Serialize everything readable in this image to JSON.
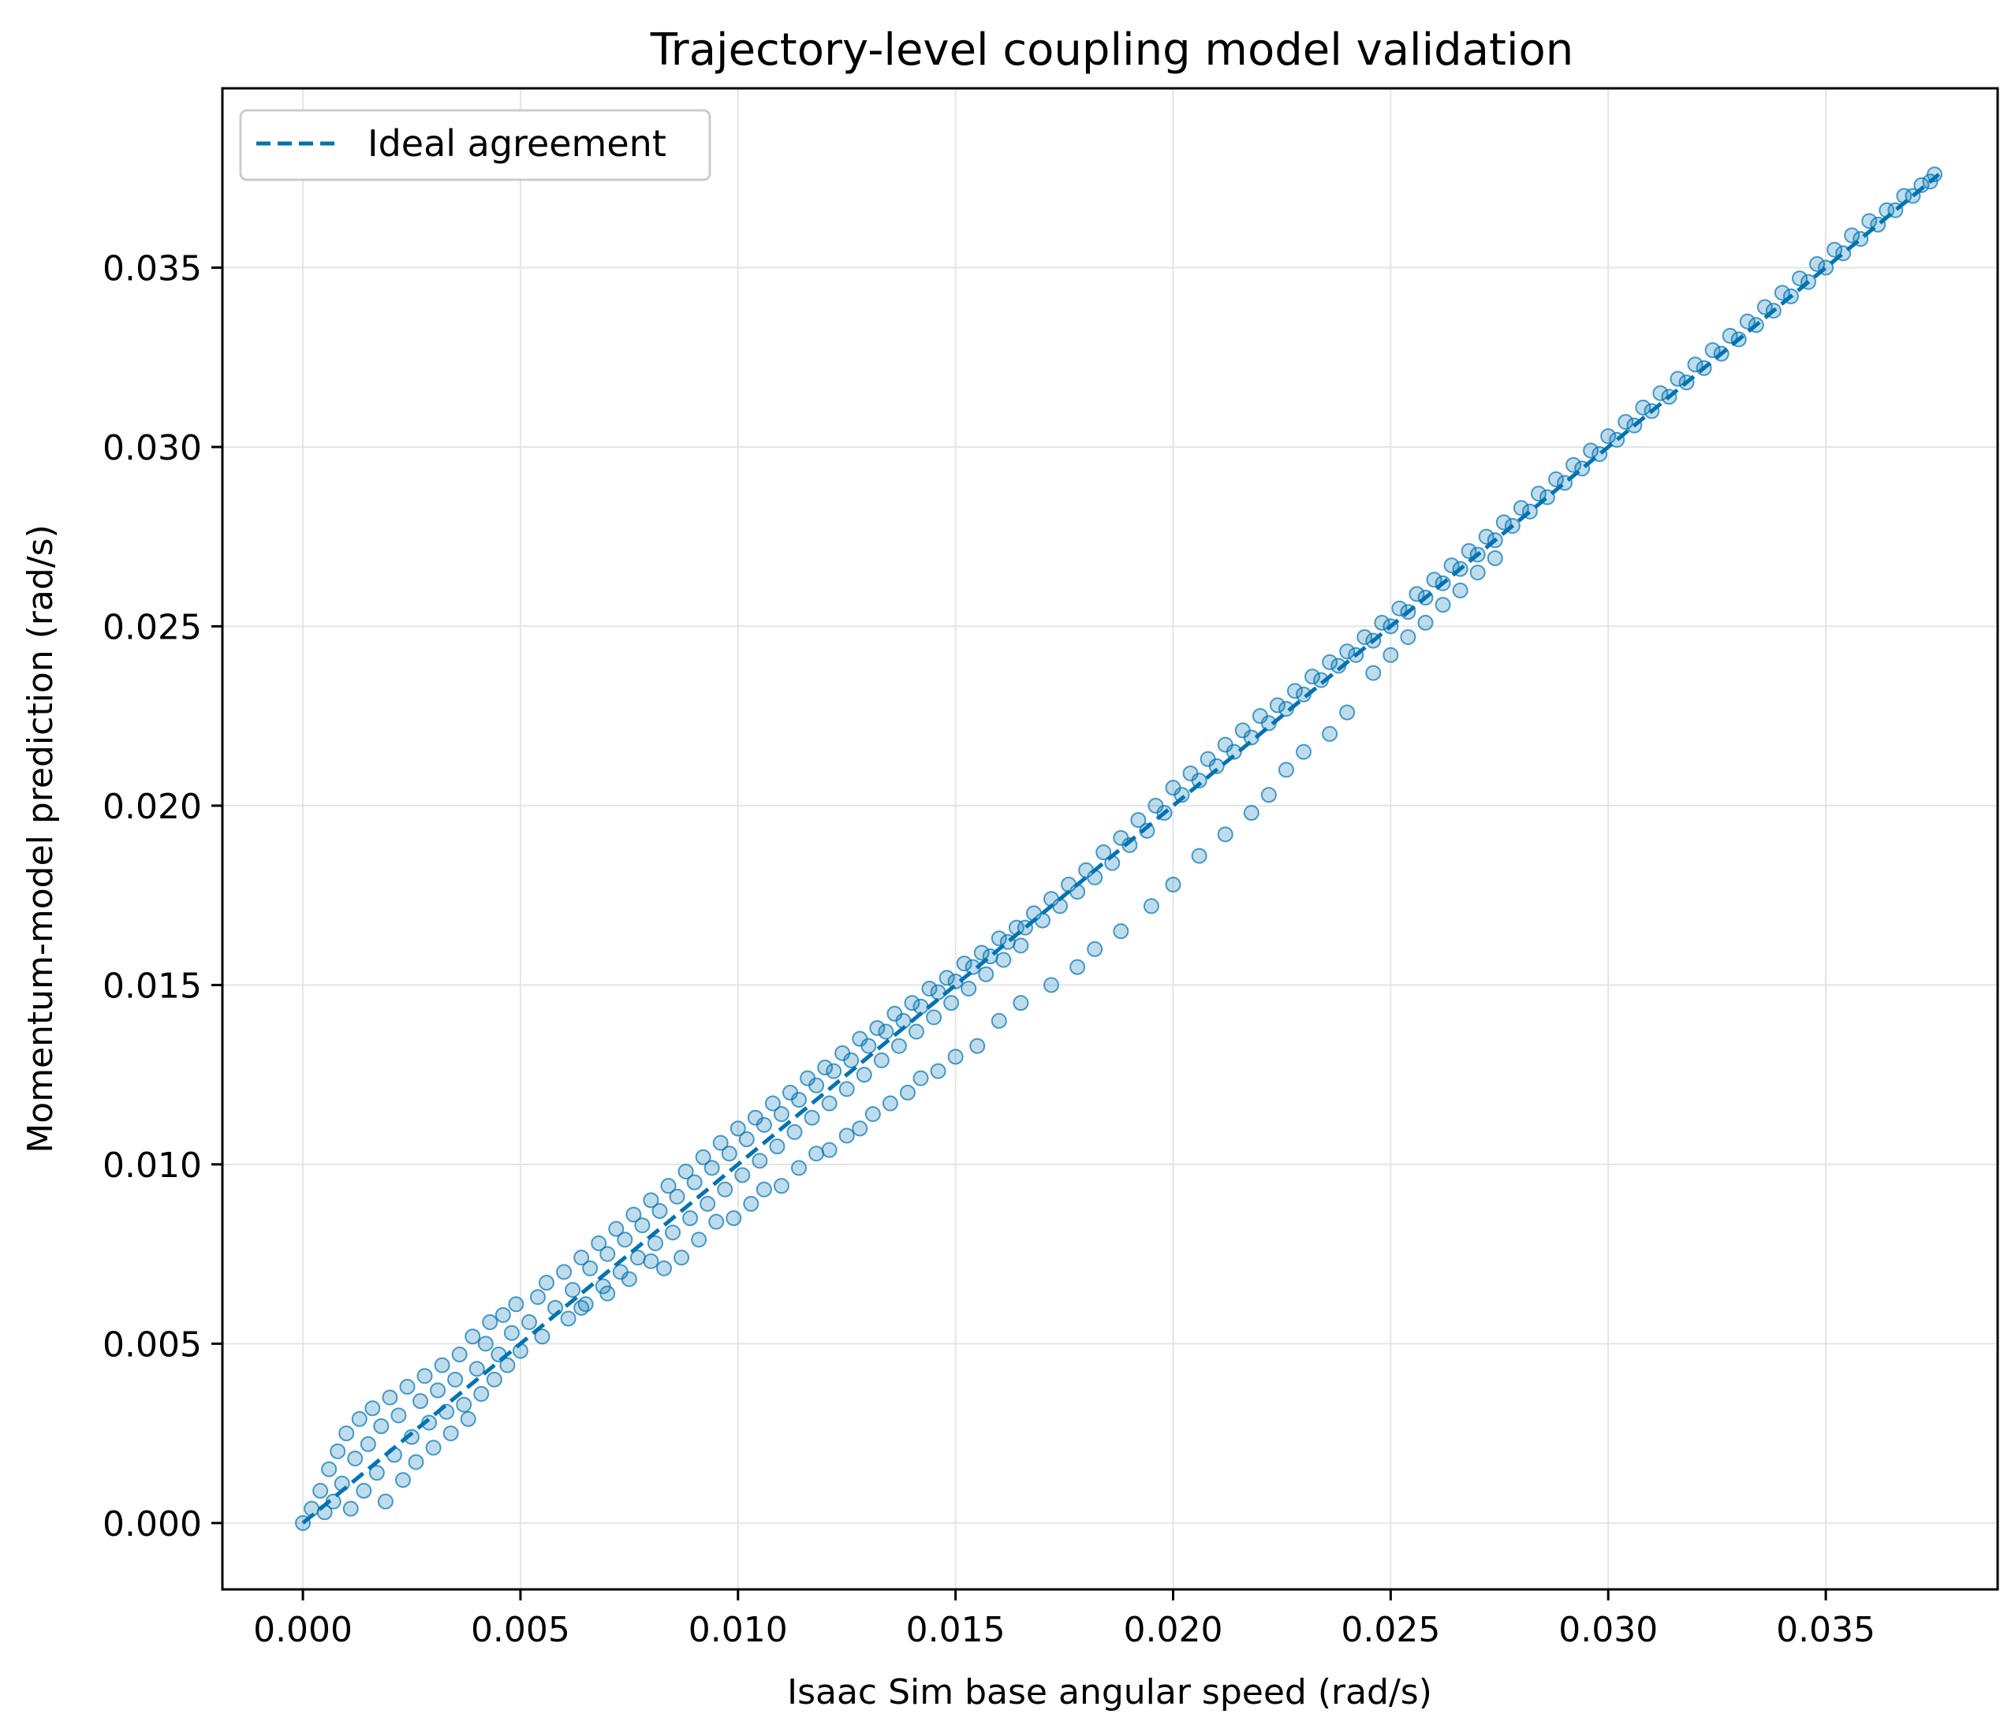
{
  "chart_data": {
    "type": "scatter",
    "title": "Trajectory-level coupling model validation",
    "xlabel": "Isaac Sim base angular speed (rad/s)",
    "ylabel": "Momentum-model prediction (rad/s)",
    "xlim": [
      -0.00185,
      0.03895
    ],
    "ylim": [
      -0.00185,
      0.04
    ],
    "xticks": [
      0.0,
      0.005,
      0.01,
      0.015,
      0.02,
      0.025,
      0.03,
      0.035
    ],
    "yticks": [
      0.0,
      0.005,
      0.01,
      0.015,
      0.02,
      0.025,
      0.03,
      0.035
    ],
    "xtick_labels": [
      "0.000",
      "0.005",
      "0.010",
      "0.015",
      "0.020",
      "0.025",
      "0.030",
      "0.035"
    ],
    "ytick_labels": [
      "0.000",
      "0.005",
      "0.010",
      "0.015",
      "0.020",
      "0.025",
      "0.030",
      "0.035"
    ],
    "grid": true,
    "legend_position": "top-left",
    "colors": {
      "series": "#0173b2",
      "grid": "#e5e5e5",
      "axis": "#000000"
    },
    "series": [
      {
        "kind": "scatter",
        "alpha": 0.25,
        "points": [
          [
            0.0,
            0.0
          ],
          [
            0.0002,
            0.0004
          ],
          [
            0.0004,
            0.0009
          ],
          [
            0.0005,
            0.0003
          ],
          [
            0.0006,
            0.0015
          ],
          [
            0.0007,
            0.0006
          ],
          [
            0.0008,
            0.002
          ],
          [
            0.0009,
            0.0011
          ],
          [
            0.001,
            0.0025
          ],
          [
            0.0011,
            0.0004
          ],
          [
            0.0012,
            0.0018
          ],
          [
            0.0013,
            0.0029
          ],
          [
            0.0014,
            0.0009
          ],
          [
            0.0015,
            0.0022
          ],
          [
            0.0016,
            0.0032
          ],
          [
            0.0017,
            0.0014
          ],
          [
            0.0018,
            0.0027
          ],
          [
            0.0019,
            0.0006
          ],
          [
            0.002,
            0.0035
          ],
          [
            0.0021,
            0.0019
          ],
          [
            0.0022,
            0.003
          ],
          [
            0.0023,
            0.0012
          ],
          [
            0.0024,
            0.0038
          ],
          [
            0.0025,
            0.0024
          ],
          [
            0.0026,
            0.0017
          ],
          [
            0.0027,
            0.0034
          ],
          [
            0.0028,
            0.0041
          ],
          [
            0.0029,
            0.0028
          ],
          [
            0.003,
            0.0021
          ],
          [
            0.0031,
            0.0037
          ],
          [
            0.0032,
            0.0044
          ],
          [
            0.0033,
            0.0031
          ],
          [
            0.0034,
            0.0025
          ],
          [
            0.0035,
            0.004
          ],
          [
            0.0036,
            0.0047
          ],
          [
            0.0037,
            0.0033
          ],
          [
            0.0038,
            0.0029
          ],
          [
            0.0039,
            0.0052
          ],
          [
            0.004,
            0.0043
          ],
          [
            0.0041,
            0.0036
          ],
          [
            0.0042,
            0.005
          ],
          [
            0.0043,
            0.0056
          ],
          [
            0.0044,
            0.004
          ],
          [
            0.0045,
            0.0047
          ],
          [
            0.0046,
            0.0058
          ],
          [
            0.0047,
            0.0044
          ],
          [
            0.0048,
            0.0053
          ],
          [
            0.0049,
            0.0061
          ],
          [
            0.005,
            0.0048
          ],
          [
            0.0052,
            0.0056
          ],
          [
            0.0054,
            0.0063
          ],
          [
            0.0055,
            0.0052
          ],
          [
            0.0056,
            0.0067
          ],
          [
            0.0058,
            0.006
          ],
          [
            0.006,
            0.007
          ],
          [
            0.0061,
            0.0057
          ],
          [
            0.0062,
            0.0065
          ],
          [
            0.0064,
            0.0074
          ],
          [
            0.0065,
            0.0061
          ],
          [
            0.0066,
            0.0071
          ],
          [
            0.0068,
            0.0078
          ],
          [
            0.0069,
            0.0066
          ],
          [
            0.007,
            0.0075
          ],
          [
            0.0072,
            0.0082
          ],
          [
            0.0073,
            0.007
          ],
          [
            0.0074,
            0.0079
          ],
          [
            0.0076,
            0.0086
          ],
          [
            0.0077,
            0.0074
          ],
          [
            0.0078,
            0.0083
          ],
          [
            0.008,
            0.009
          ],
          [
            0.0081,
            0.0078
          ],
          [
            0.0082,
            0.0087
          ],
          [
            0.0084,
            0.0094
          ],
          [
            0.0085,
            0.0081
          ],
          [
            0.0086,
            0.0091
          ],
          [
            0.0088,
            0.0098
          ],
          [
            0.0089,
            0.0085
          ],
          [
            0.009,
            0.0095
          ],
          [
            0.0092,
            0.0102
          ],
          [
            0.0093,
            0.0089
          ],
          [
            0.0094,
            0.0099
          ],
          [
            0.0096,
            0.0106
          ],
          [
            0.0097,
            0.0093
          ],
          [
            0.0098,
            0.0103
          ],
          [
            0.01,
            0.011
          ],
          [
            0.0101,
            0.0097
          ],
          [
            0.0102,
            0.0107
          ],
          [
            0.0104,
            0.0113
          ],
          [
            0.0105,
            0.0101
          ],
          [
            0.0106,
            0.0111
          ],
          [
            0.0108,
            0.0117
          ],
          [
            0.0109,
            0.0105
          ],
          [
            0.011,
            0.0114
          ],
          [
            0.0112,
            0.012
          ],
          [
            0.0113,
            0.0109
          ],
          [
            0.0114,
            0.0118
          ],
          [
            0.0116,
            0.0124
          ],
          [
            0.0117,
            0.0113
          ],
          [
            0.0118,
            0.0122
          ],
          [
            0.012,
            0.0127
          ],
          [
            0.0121,
            0.0117
          ],
          [
            0.0122,
            0.0126
          ],
          [
            0.0124,
            0.0131
          ],
          [
            0.0125,
            0.0121
          ],
          [
            0.0126,
            0.0129
          ],
          [
            0.0128,
            0.0135
          ],
          [
            0.0129,
            0.0125
          ],
          [
            0.013,
            0.0133
          ],
          [
            0.0132,
            0.0138
          ],
          [
            0.0133,
            0.0129
          ],
          [
            0.0134,
            0.0137
          ],
          [
            0.0136,
            0.0142
          ],
          [
            0.0137,
            0.0133
          ],
          [
            0.0138,
            0.014
          ],
          [
            0.014,
            0.0145
          ],
          [
            0.0141,
            0.0137
          ],
          [
            0.0142,
            0.0144
          ],
          [
            0.0144,
            0.0149
          ],
          [
            0.0145,
            0.0141
          ],
          [
            0.0146,
            0.0148
          ],
          [
            0.0148,
            0.0152
          ],
          [
            0.0149,
            0.0145
          ],
          [
            0.015,
            0.0151
          ],
          [
            0.0152,
            0.0156
          ],
          [
            0.0153,
            0.0149
          ],
          [
            0.0154,
            0.0155
          ],
          [
            0.0156,
            0.0159
          ],
          [
            0.0157,
            0.0153
          ],
          [
            0.0158,
            0.0158
          ],
          [
            0.016,
            0.0163
          ],
          [
            0.0161,
            0.0157
          ],
          [
            0.0162,
            0.0162
          ],
          [
            0.0164,
            0.0166
          ],
          [
            0.0165,
            0.0161
          ],
          [
            0.0166,
            0.0166
          ],
          [
            0.0168,
            0.017
          ],
          [
            0.017,
            0.0168
          ],
          [
            0.0172,
            0.0174
          ],
          [
            0.0174,
            0.0172
          ],
          [
            0.0176,
            0.0178
          ],
          [
            0.0178,
            0.0176
          ],
          [
            0.018,
            0.0182
          ],
          [
            0.0182,
            0.018
          ],
          [
            0.0184,
            0.0187
          ],
          [
            0.0186,
            0.0184
          ],
          [
            0.0188,
            0.0191
          ],
          [
            0.019,
            0.0189
          ],
          [
            0.0192,
            0.0196
          ],
          [
            0.0194,
            0.0193
          ],
          [
            0.0196,
            0.02
          ],
          [
            0.0198,
            0.0198
          ],
          [
            0.02,
            0.0205
          ],
          [
            0.0202,
            0.0203
          ],
          [
            0.0204,
            0.0209
          ],
          [
            0.0206,
            0.0207
          ],
          [
            0.0208,
            0.0213
          ],
          [
            0.021,
            0.0211
          ],
          [
            0.0212,
            0.0217
          ],
          [
            0.0214,
            0.0215
          ],
          [
            0.0216,
            0.0221
          ],
          [
            0.0218,
            0.0219
          ],
          [
            0.022,
            0.0225
          ],
          [
            0.0222,
            0.0223
          ],
          [
            0.0224,
            0.0228
          ],
          [
            0.0226,
            0.0227
          ],
          [
            0.0228,
            0.0232
          ],
          [
            0.023,
            0.0231
          ],
          [
            0.0232,
            0.0236
          ],
          [
            0.0234,
            0.0235
          ],
          [
            0.0236,
            0.024
          ],
          [
            0.0238,
            0.0239
          ],
          [
            0.024,
            0.0243
          ],
          [
            0.0242,
            0.0242
          ],
          [
            0.0244,
            0.0247
          ],
          [
            0.0246,
            0.0246
          ],
          [
            0.0248,
            0.0251
          ],
          [
            0.025,
            0.025
          ],
          [
            0.0252,
            0.0255
          ],
          [
            0.0254,
            0.0254
          ],
          [
            0.0256,
            0.0259
          ],
          [
            0.0258,
            0.0258
          ],
          [
            0.026,
            0.0263
          ],
          [
            0.0262,
            0.0262
          ],
          [
            0.0264,
            0.0267
          ],
          [
            0.0266,
            0.0266
          ],
          [
            0.0268,
            0.0271
          ],
          [
            0.027,
            0.027
          ],
          [
            0.0272,
            0.0275
          ],
          [
            0.0274,
            0.0274
          ],
          [
            0.0276,
            0.0279
          ],
          [
            0.0278,
            0.0278
          ],
          [
            0.028,
            0.0283
          ],
          [
            0.0282,
            0.0282
          ],
          [
            0.0284,
            0.0287
          ],
          [
            0.0286,
            0.0286
          ],
          [
            0.0288,
            0.0291
          ],
          [
            0.029,
            0.029
          ],
          [
            0.0292,
            0.0295
          ],
          [
            0.0294,
            0.0294
          ],
          [
            0.0296,
            0.0299
          ],
          [
            0.0298,
            0.0298
          ],
          [
            0.03,
            0.0303
          ],
          [
            0.0302,
            0.0302
          ],
          [
            0.0304,
            0.0307
          ],
          [
            0.0306,
            0.0306
          ],
          [
            0.0308,
            0.0311
          ],
          [
            0.031,
            0.031
          ],
          [
            0.0312,
            0.0315
          ],
          [
            0.0314,
            0.0314
          ],
          [
            0.0316,
            0.0319
          ],
          [
            0.0318,
            0.0318
          ],
          [
            0.032,
            0.0323
          ],
          [
            0.0322,
            0.0322
          ],
          [
            0.0324,
            0.0327
          ],
          [
            0.0326,
            0.0326
          ],
          [
            0.0328,
            0.0331
          ],
          [
            0.033,
            0.033
          ],
          [
            0.0332,
            0.0335
          ],
          [
            0.0334,
            0.0334
          ],
          [
            0.0336,
            0.0339
          ],
          [
            0.0338,
            0.0338
          ],
          [
            0.034,
            0.0343
          ],
          [
            0.0342,
            0.0342
          ],
          [
            0.0344,
            0.0347
          ],
          [
            0.0346,
            0.0346
          ],
          [
            0.0348,
            0.0351
          ],
          [
            0.035,
            0.035
          ],
          [
            0.0352,
            0.0355
          ],
          [
            0.0354,
            0.0354
          ],
          [
            0.0356,
            0.0359
          ],
          [
            0.0358,
            0.0358
          ],
          [
            0.036,
            0.0363
          ],
          [
            0.0362,
            0.0362
          ],
          [
            0.0364,
            0.0366
          ],
          [
            0.0366,
            0.0366
          ],
          [
            0.0368,
            0.037
          ],
          [
            0.037,
            0.037
          ],
          [
            0.0372,
            0.0373
          ],
          [
            0.0374,
            0.0374
          ],
          [
            0.0375,
            0.0376
          ],
          [
            0.0064,
            0.006
          ],
          [
            0.007,
            0.0064
          ],
          [
            0.0075,
            0.0068
          ],
          [
            0.008,
            0.0073
          ],
          [
            0.0083,
            0.0071
          ],
          [
            0.0087,
            0.0074
          ],
          [
            0.0091,
            0.0079
          ],
          [
            0.0095,
            0.0084
          ],
          [
            0.0099,
            0.0085
          ],
          [
            0.0103,
            0.0089
          ],
          [
            0.0106,
            0.0093
          ],
          [
            0.011,
            0.0094
          ],
          [
            0.0114,
            0.0099
          ],
          [
            0.0118,
            0.0103
          ],
          [
            0.0121,
            0.0104
          ],
          [
            0.0125,
            0.0108
          ],
          [
            0.0128,
            0.011
          ],
          [
            0.0131,
            0.0114
          ],
          [
            0.0135,
            0.0117
          ],
          [
            0.0139,
            0.012
          ],
          [
            0.0142,
            0.0124
          ],
          [
            0.0146,
            0.0126
          ],
          [
            0.015,
            0.013
          ],
          [
            0.0155,
            0.0133
          ],
          [
            0.016,
            0.014
          ],
          [
            0.0165,
            0.0145
          ],
          [
            0.0172,
            0.015
          ],
          [
            0.0178,
            0.0155
          ],
          [
            0.0182,
            0.016
          ],
          [
            0.0188,
            0.0165
          ],
          [
            0.0195,
            0.0172
          ],
          [
            0.02,
            0.0178
          ],
          [
            0.0206,
            0.0186
          ],
          [
            0.0212,
            0.0192
          ],
          [
            0.0218,
            0.0198
          ],
          [
            0.0222,
            0.0203
          ],
          [
            0.0226,
            0.021
          ],
          [
            0.023,
            0.0215
          ],
          [
            0.0236,
            0.022
          ],
          [
            0.024,
            0.0226
          ],
          [
            0.0246,
            0.0237
          ],
          [
            0.025,
            0.0242
          ],
          [
            0.0254,
            0.0247
          ],
          [
            0.0258,
            0.0251
          ],
          [
            0.0262,
            0.0256
          ],
          [
            0.0266,
            0.026
          ],
          [
            0.027,
            0.0265
          ],
          [
            0.0274,
            0.0269
          ]
        ]
      },
      {
        "kind": "line",
        "name": "Ideal agreement",
        "x": [
          0.0,
          0.0376
        ],
        "y": [
          0.0,
          0.0376
        ],
        "style": "dashed"
      }
    ]
  }
}
